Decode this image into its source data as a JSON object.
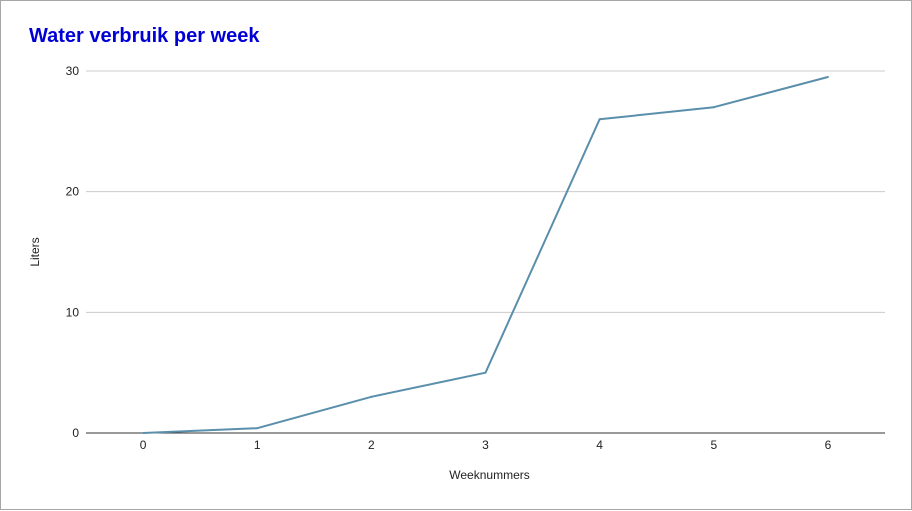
{
  "chart_data": {
    "type": "line",
    "title": "Water verbruik per week",
    "xlabel": "Weeknummers",
    "ylabel": "Liters",
    "x": [
      0,
      1,
      2,
      3,
      4,
      5,
      6
    ],
    "series": [
      {
        "values": [
          0,
          0.4,
          3,
          5,
          26,
          27,
          29.5
        ],
        "color": "#5a8fab"
      }
    ],
    "xlim": [
      -0.5,
      6.5
    ],
    "ylim": [
      0,
      30
    ],
    "yticks": [
      0,
      10,
      20,
      30
    ],
    "xticks": [
      0,
      1,
      2,
      3,
      4,
      5,
      6
    ],
    "grid": true,
    "legend": "none",
    "title_color": "#0000d6"
  }
}
